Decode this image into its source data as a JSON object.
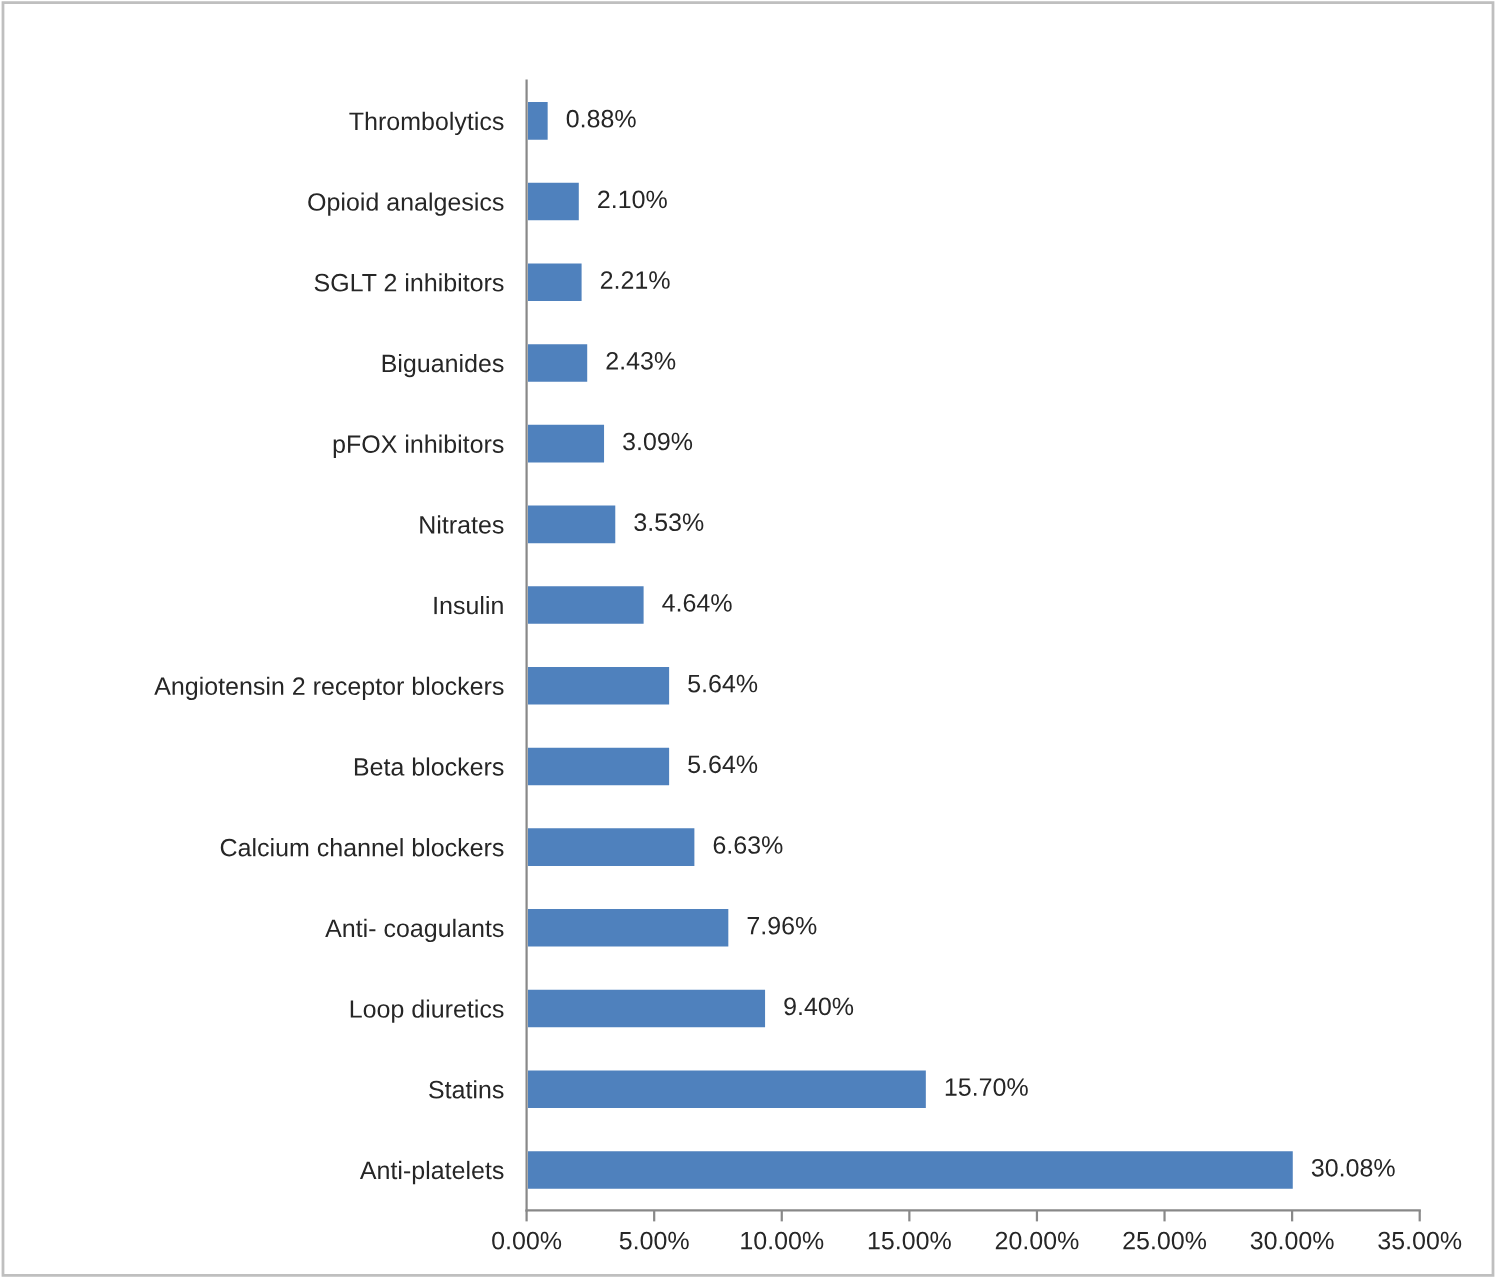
{
  "chart_data": {
    "type": "bar",
    "orientation": "horizontal",
    "categories": [
      "Thrombolytics",
      "Opioid analgesics",
      "SGLT 2 inhibitors",
      "Biguanides",
      "pFOX inhibitors",
      "Nitrates",
      "Insulin",
      "Angiotensin 2 receptor blockers",
      "Beta blockers",
      "Calcium channel blockers",
      "Anti- coagulants",
      "Loop diuretics",
      "Statins",
      "Anti-platelets"
    ],
    "values": [
      0.88,
      2.1,
      2.21,
      2.43,
      3.09,
      3.53,
      4.64,
      5.64,
      5.64,
      6.63,
      7.96,
      9.4,
      15.7,
      30.08
    ],
    "value_labels": [
      "0.88%",
      "2.10%",
      "2.21%",
      "2.43%",
      "3.09%",
      "3.53%",
      "4.64%",
      "5.64%",
      "5.64%",
      "6.63%",
      "7.96%",
      "9.40%",
      "15.70%",
      "30.08%"
    ],
    "color": "#4f81bd",
    "xlim": [
      0,
      35
    ],
    "xticks": [
      {
        "value": 0,
        "label": "0.00%"
      },
      {
        "value": 5,
        "label": "5.00%"
      },
      {
        "value": 10,
        "label": "10.00%"
      },
      {
        "value": 15,
        "label": "15.00%"
      },
      {
        "value": 20,
        "label": "20.00%"
      },
      {
        "value": 25,
        "label": "25.00%"
      },
      {
        "value": 30,
        "label": "30.00%"
      },
      {
        "value": 35,
        "label": "35.00%"
      }
    ],
    "grid": false,
    "legend": false
  }
}
